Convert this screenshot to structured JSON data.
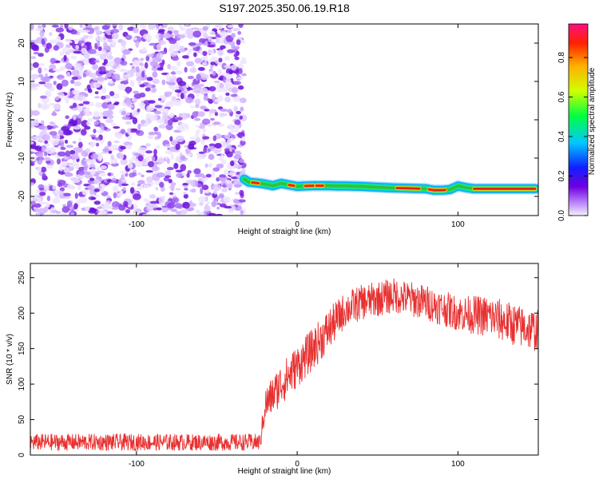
{
  "title": "S197.2025.350.06.19.R18",
  "charts": [
    {
      "type": "heatmap",
      "xlabel": "Height of straight line (km)",
      "ylabel": "Frequency (Hz)",
      "xlim": [
        -166,
        150
      ],
      "ylim": [
        -25,
        25
      ],
      "xticks": [
        -100,
        0,
        100
      ],
      "yticks": [
        20,
        10,
        0,
        -10,
        -20
      ],
      "noise_region_x": [
        -166,
        -33
      ],
      "signal_track": {
        "x": [
          -33,
          -30,
          -25,
          -20,
          -15,
          -10,
          -5,
          0,
          5,
          10,
          15,
          20,
          25,
          30,
          40,
          50,
          60,
          70,
          80,
          85,
          90,
          95,
          100,
          105,
          110,
          120,
          130,
          140,
          148
        ],
        "y": [
          -15.5,
          -16.3,
          -16.5,
          -16.8,
          -17.2,
          -16.6,
          -17.0,
          -17.4,
          -17.3,
          -17.2,
          -17.2,
          -17.2,
          -17.3,
          -17.3,
          -17.4,
          -17.6,
          -17.8,
          -17.9,
          -18.0,
          -18.4,
          -18.4,
          -18.2,
          -17.3,
          -17.7,
          -18.0,
          -18.0,
          -18.0,
          -18.0,
          -18.0
        ]
      },
      "colorbar": {
        "label": "Normalized spectral amplitude",
        "range": [
          0,
          0.97
        ],
        "ticks": [
          "0.0",
          "0.2",
          "0.4",
          "0.6",
          "0.8"
        ]
      }
    },
    {
      "type": "line",
      "xlabel": "Height of straight line (km)",
      "ylabel": "SNR (10 * v/v)",
      "xlim": [
        -166,
        150
      ],
      "ylim": [
        0,
        270
      ],
      "xticks": [
        -100,
        0,
        100
      ],
      "yticks": [
        0,
        50,
        100,
        150,
        200,
        250
      ],
      "color": "#e83030",
      "series_envelope": {
        "x": [
          -166,
          -40,
          -23,
          -20,
          -10,
          0,
          10,
          20,
          30,
          40,
          60,
          80,
          100,
          120,
          140,
          150
        ],
        "mean": [
          18,
          18,
          18,
          70,
          100,
          125,
          150,
          178,
          205,
          215,
          225,
          215,
          200,
          195,
          180,
          175
        ],
        "spread": [
          12,
          12,
          12,
          25,
          30,
          30,
          30,
          30,
          25,
          25,
          25,
          25,
          25,
          30,
          30,
          30
        ]
      }
    }
  ]
}
